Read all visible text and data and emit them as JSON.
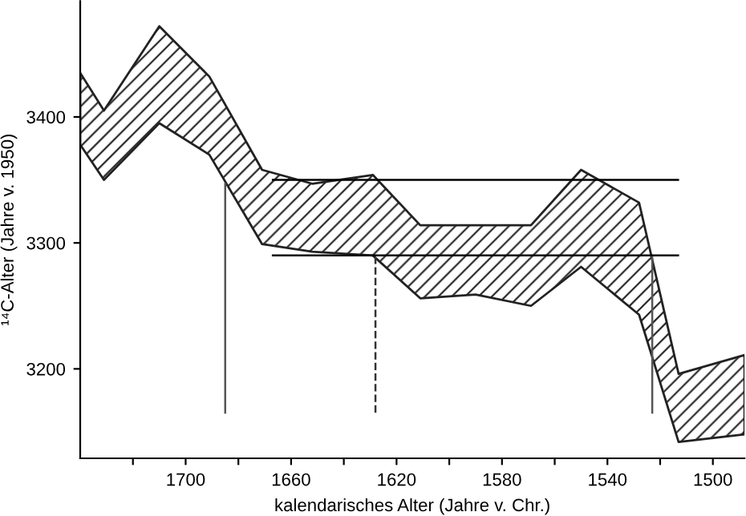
{
  "chart_data": {
    "type": "area",
    "xlabel": "kalendarisches Alter (Jahre v. Chr.)",
    "ylabel": "¹⁴C-Alter (Jahre v. 1950)",
    "x": [
      1740,
      1731,
      1710,
      1691,
      1671,
      1652,
      1629,
      1611,
      1590,
      1569,
      1550,
      1528,
      1513,
      1488
    ],
    "series": [
      {
        "type": "area",
        "color": "#222222",
        "values": [
          null,
          null,
          null,
          null,
          null,
          null,
          null,
          null,
          null,
          null,
          null,
          null,
          null,
          null
        ],
        "upper": [
          3435,
          3405,
          3472,
          3432,
          3358,
          3347,
          3354,
          3314,
          3314,
          3314,
          3358,
          3332,
          3196,
          3211
        ],
        "lower": [
          3378,
          3350,
          3395,
          3370,
          3299,
          3293,
          3290,
          3256,
          3259,
          3250,
          3281,
          3243,
          3142,
          3148
        ]
      }
    ],
    "xlim": [
      1740,
      1488
    ],
    "ylim": [
      3129,
      3492
    ],
    "xticks": [
      {
        "value": 1720,
        "label": null
      },
      1700,
      {
        "value": 1680,
        "label": null
      },
      1660,
      {
        "value": 1640,
        "label": null
      },
      1620,
      {
        "value": 1600,
        "label": null
      },
      1580,
      {
        "value": 1560,
        "label": null
      },
      1540,
      {
        "value": 1520,
        "label": null
      },
      1500
    ],
    "yticks": [
      3200,
      3300,
      3400
    ],
    "ref_lines": [
      {
        "axis": "y",
        "value": 3350,
        "color": "#000000"
      },
      {
        "axis": "y",
        "value": 3290,
        "color": "#000000"
      },
      {
        "axis": "x",
        "value": 1685,
        "color": "#555555"
      },
      {
        "axis": "x",
        "value": 1628,
        "color": "#333333",
        "line_style": "dashed"
      },
      {
        "axis": "x",
        "value": 1523,
        "color": "#555555"
      }
    ],
    "grid": false,
    "legend": false
  }
}
